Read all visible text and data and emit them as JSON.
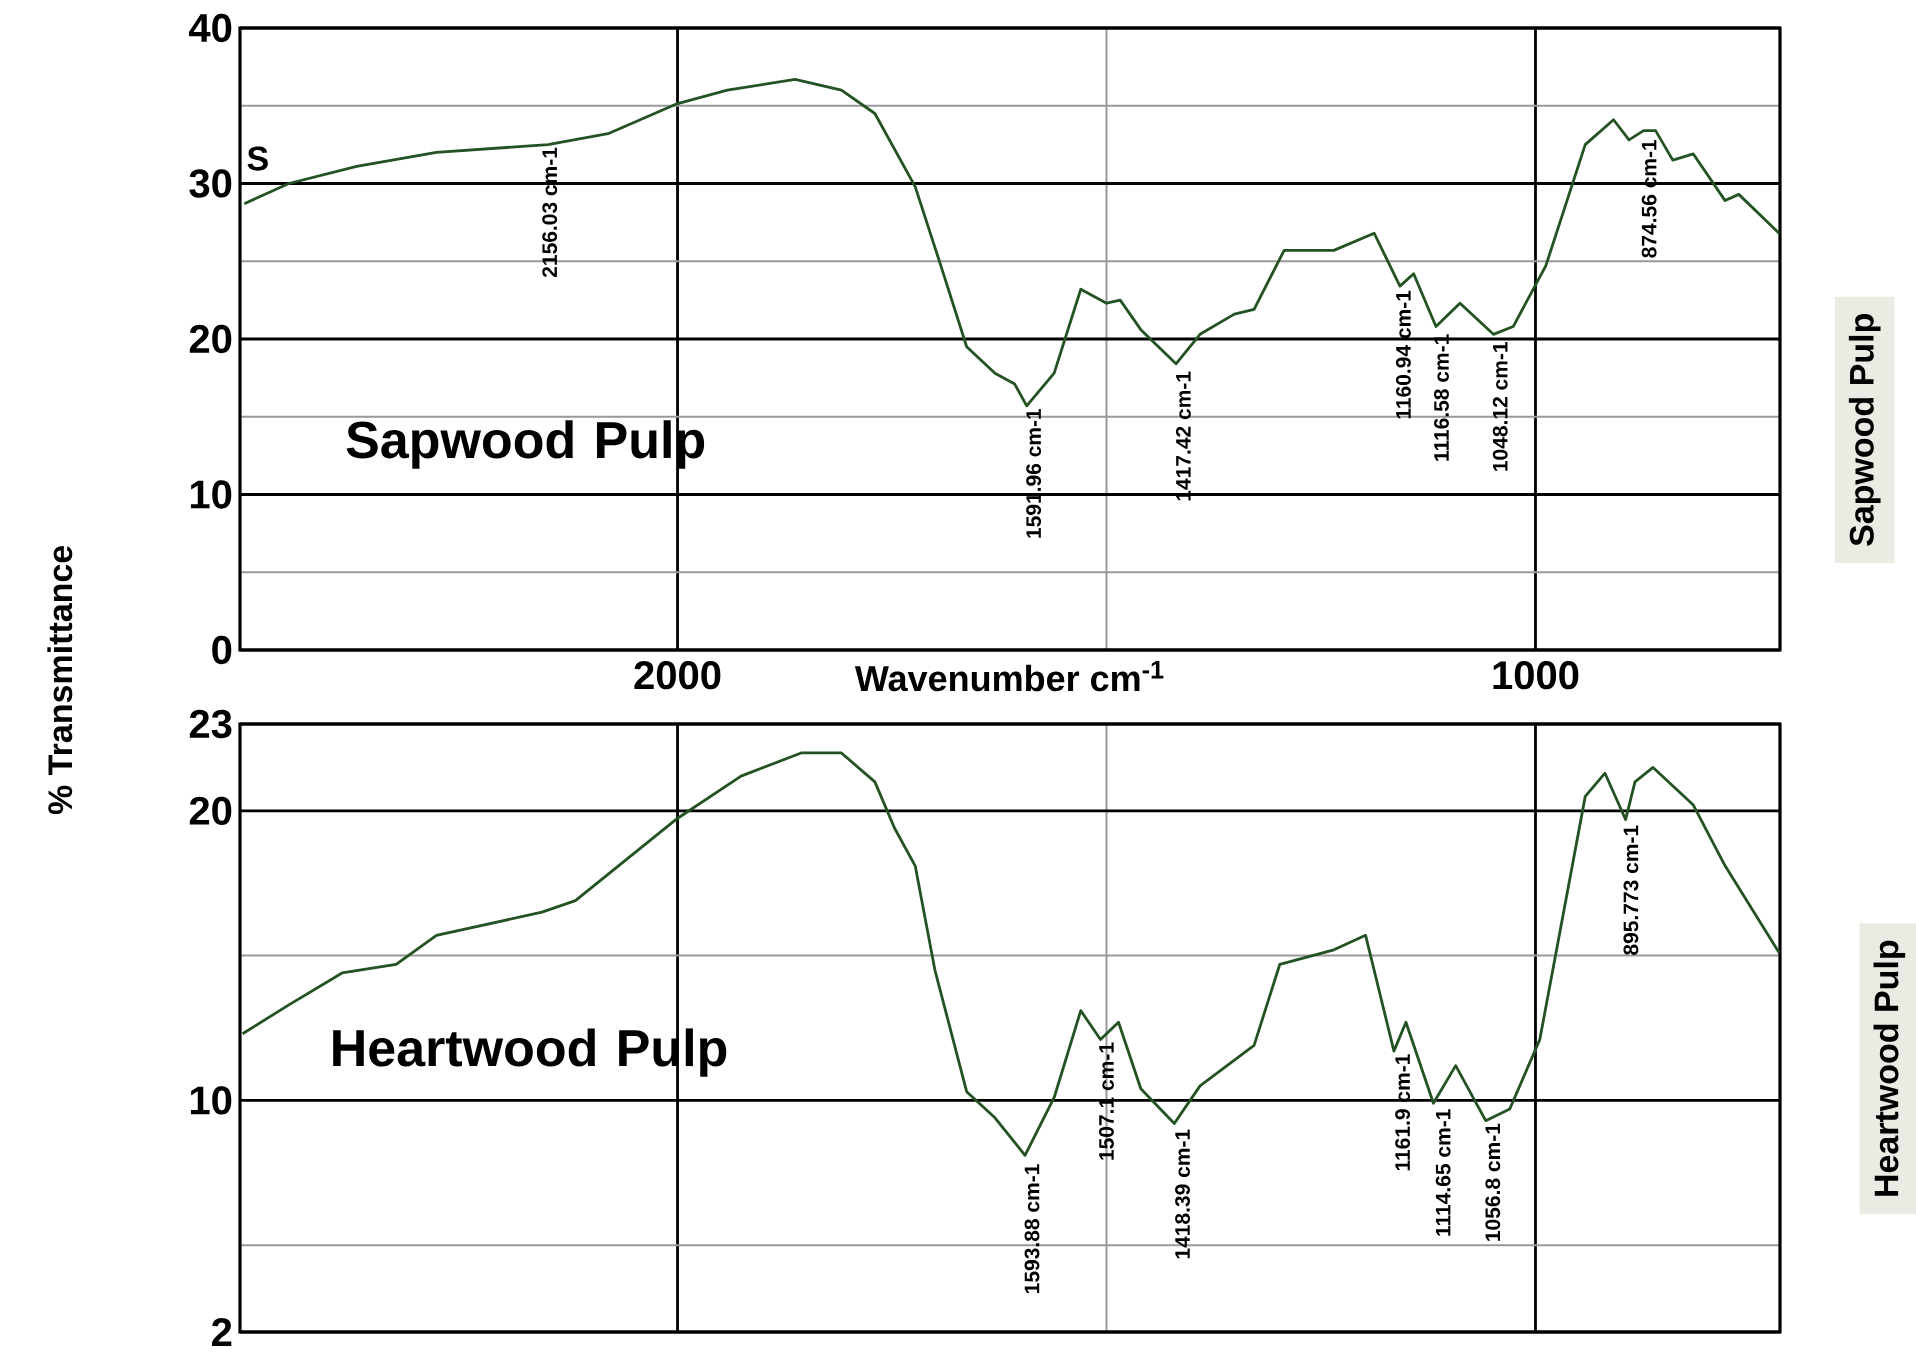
{
  "chart_data": [
    {
      "type": "line",
      "xlabel": "Wavenumber cm$^{-1}$",
      "ylabel": "% Transmittance",
      "y2label": "Sapwood Pulp",
      "xlim": [
        2510,
        715
      ],
      "ylim": [
        0,
        40
      ],
      "xticks": [
        2000,
        {
          "value": 1500,
          "label": null
        },
        1000
      ],
      "yticks": [
        0,
        {
          "value": 5,
          "label": null
        },
        10,
        {
          "value": 15,
          "label": null
        },
        20,
        {
          "value": 25,
          "label": null
        },
        30,
        {
          "value": 35,
          "label": null
        },
        40
      ],
      "grid": true,
      "color": "#235223",
      "x": [
        2505,
        2453,
        2374,
        2281,
        2151,
        2081,
        2002,
        1942,
        1863,
        1809,
        1770,
        1723,
        1693,
        1663,
        1630,
        1607,
        1593,
        1561,
        1530,
        1500,
        1484,
        1460,
        1419,
        1391,
        1351,
        1328,
        1293,
        1235,
        1188,
        1158,
        1142,
        1116,
        1088,
        1049,
        1026,
        988,
        942,
        909,
        891,
        874,
        860,
        840,
        816,
        779,
        763,
        716
      ],
      "values": [
        28.7,
        30.0,
        31.1,
        32.0,
        32.5,
        33.2,
        35.1,
        36.0,
        36.7,
        36.0,
        34.5,
        29.8,
        24.7,
        19.5,
        17.8,
        17.1,
        15.7,
        17.8,
        23.2,
        22.3,
        22.5,
        20.6,
        18.4,
        20.3,
        21.6,
        21.9,
        25.7,
        25.7,
        26.8,
        23.4,
        24.2,
        20.8,
        22.3,
        20.3,
        20.8,
        24.7,
        32.5,
        34.1,
        32.8,
        33.4,
        33.4,
        31.5,
        31.9,
        28.9,
        29.3,
        26.8
      ],
      "annotations": [
        "S",
        "Sapwood Pulp",
        {
          "text": "2156.03 cm-1",
          "x": 2156.03,
          "y": 32.5
        },
        {
          "text": "1591.96 cm-1",
          "x": 1591.96,
          "y": 15.7
        },
        {
          "text": "1417.42 cm-1",
          "x": 1417.42,
          "y": 18.1
        },
        {
          "text": "1160.94 cm-1",
          "x": 1160.94,
          "y": 23.3
        },
        {
          "text": "1116.58 cm-1",
          "x": 1116.58,
          "y": 20.5
        },
        {
          "text": "1048.12 cm-1",
          "x": 1048.12,
          "y": 20.0
        },
        {
          "text": "874.56 cm-1",
          "x": 874.56,
          "y": 33.0
        }
      ]
    },
    {
      "type": "line",
      "y2label": "Heartwood Pulp",
      "tick_labels": "y",
      "xlim": [
        2510,
        715
      ],
      "ylim": [
        2,
        23
      ],
      "xticks": [
        2000,
        {
          "value": 1500,
          "label": null
        },
        1000
      ],
      "yticks": [
        2,
        {
          "value": 5,
          "label": null
        },
        10,
        {
          "value": 15,
          "label": null
        },
        20,
        23
      ],
      "grid": true,
      "color": "#235223",
      "x": [
        2507,
        2453,
        2391,
        2328,
        2281,
        2158,
        2119,
        2002,
        1926,
        1856,
        1809,
        1770,
        1747,
        1723,
        1700,
        1663,
        1630,
        1595,
        1561,
        1530,
        1507,
        1486,
        1460,
        1421,
        1391,
        1328,
        1298,
        1235,
        1198,
        1165,
        1151,
        1119,
        1093,
        1058,
        1030,
        995,
        942,
        919,
        895,
        884,
        863,
        816,
        779,
        716
      ],
      "values": [
        12.3,
        13.3,
        14.4,
        14.7,
        15.7,
        16.5,
        16.9,
        19.7,
        21.2,
        22.0,
        22.0,
        21.0,
        19.4,
        18.1,
        14.5,
        10.3,
        9.4,
        8.1,
        10.1,
        13.1,
        12.1,
        12.7,
        10.4,
        9.2,
        10.5,
        11.9,
        14.7,
        15.2,
        15.7,
        11.7,
        12.7,
        9.9,
        11.2,
        9.3,
        9.7,
        12.1,
        20.5,
        21.3,
        19.7,
        21.0,
        21.5,
        20.2,
        18.1,
        15.1
      ],
      "annotations": [
        "Heartwood Pulp",
        {
          "text": "1593.88 cm-1",
          "x": 1593.88,
          "y": 7.9
        },
        {
          "text": "1507.1 cm-1",
          "x": 1507.1,
          "y": 12.1
        },
        {
          "text": "1418.39 cm-1",
          "x": 1418.39,
          "y": 9.1
        },
        {
          "text": "1161.9 cm-1",
          "x": 1161.9,
          "y": 11.7
        },
        {
          "text": "1114.65 cm-1",
          "x": 1114.65,
          "y": 9.8
        },
        {
          "text": "1056.8 cm-1",
          "x": 1056.8,
          "y": 9.3
        },
        {
          "text": "895.773 cm-1",
          "x": 895.773,
          "y": 19.6
        }
      ]
    }
  ]
}
